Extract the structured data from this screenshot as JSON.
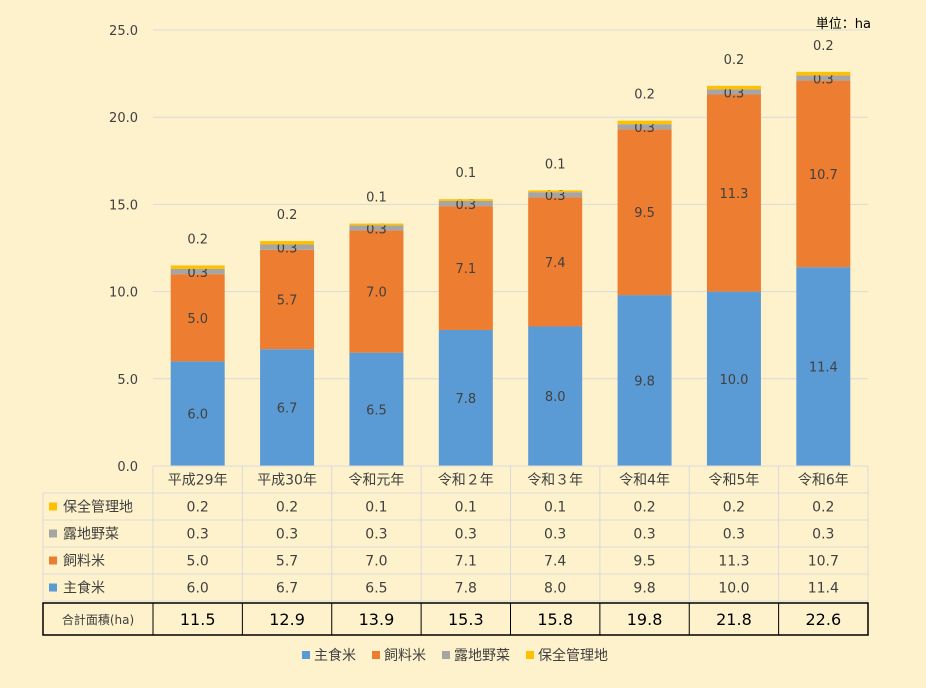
{
  "chart_data": {
    "type": "bar",
    "stacked": true,
    "unit_label": "単位：ha",
    "categories": [
      "平成29年",
      "平成30年",
      "令和元年",
      "令和２年",
      "令和３年",
      "令和4年",
      "令和5年",
      "令和6年"
    ],
    "series": [
      {
        "name": "主食米",
        "color": "#5b9bd5",
        "values": [
          6.0,
          6.7,
          6.5,
          7.8,
          8.0,
          9.8,
          10.0,
          11.4
        ]
      },
      {
        "name": "飼料米",
        "color": "#ed7d31",
        "values": [
          5.0,
          5.7,
          7.0,
          7.1,
          7.4,
          9.5,
          11.3,
          10.7
        ]
      },
      {
        "name": "露地野菜",
        "color": "#a5a5a5",
        "values": [
          0.3,
          0.3,
          0.3,
          0.3,
          0.3,
          0.3,
          0.3,
          0.3
        ]
      },
      {
        "name": "保全管理地",
        "color": "#ffc000",
        "values": [
          0.2,
          0.2,
          0.1,
          0.1,
          0.1,
          0.2,
          0.2,
          0.2
        ]
      }
    ],
    "totals_label": "合計面積(ha)",
    "totals": [
      11.5,
      12.9,
      13.9,
      15.3,
      15.8,
      19.8,
      21.8,
      22.6
    ],
    "ylim": [
      0,
      25
    ],
    "yticks": [
      0,
      5,
      10,
      15,
      20,
      25
    ],
    "grid": true,
    "legend_position": "bottom"
  }
}
